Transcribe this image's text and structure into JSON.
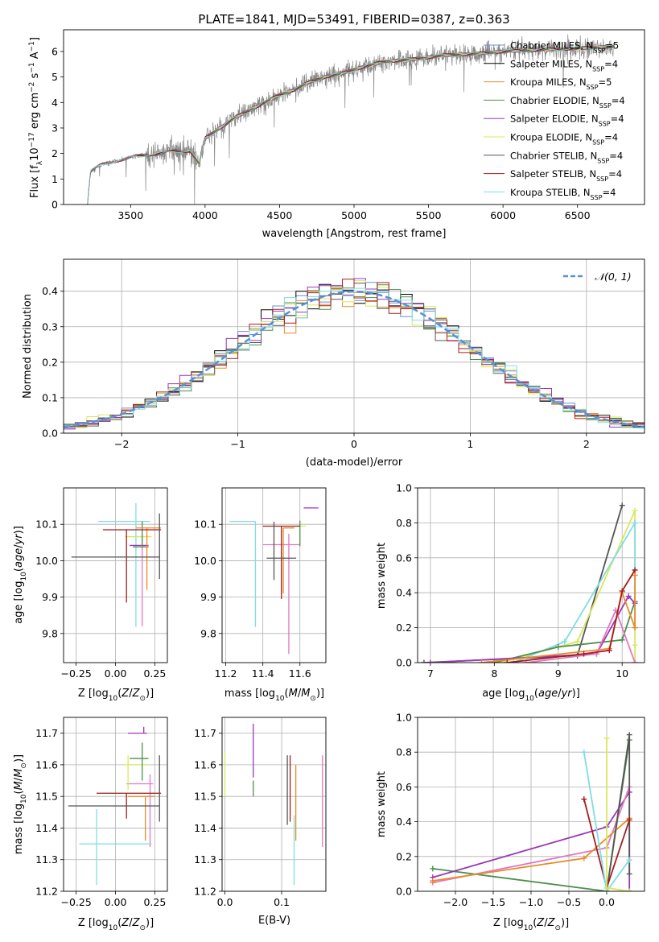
{
  "figure": {
    "title": "PLATE=1841, MJD=53491, FIBERID=0387, z=0.363"
  },
  "colors": {
    "models": [
      "#6b8fd6",
      "#000000",
      "#e88a2a",
      "#4e8f4e",
      "#9a37b8",
      "#d7e85a",
      "#555555",
      "#a51d1d",
      "#7fdde3"
    ],
    "pink": "#e377c2",
    "grid": "#b0b0b0",
    "gaussian": "#5b8fd6"
  },
  "chart_data": [
    {
      "id": "spectrum",
      "type": "line",
      "xlabel": "wavelength [Angstrom, rest frame]",
      "ylabel": "Flux [f_λ 10^-17 erg cm^-2 s^-1 A^-1]",
      "xlim": [
        3050,
        6950
      ],
      "ylim": [
        0,
        6.85
      ],
      "xticks": [
        3500,
        4000,
        4500,
        5000,
        5500,
        6000,
        6500
      ],
      "yticks": [
        0,
        1,
        2,
        3,
        4,
        5,
        6
      ],
      "grid": false,
      "legend_position": "upper-right",
      "legend": [
        {
          "label": "Chabrier MILES, N",
          "sub": "SSP",
          "suffix": "=5",
          "color_index": 0
        },
        {
          "label": "Salpeter MILES, N",
          "sub": "SSP",
          "suffix": "=4",
          "color_index": 1
        },
        {
          "label": "Kroupa MILES, N",
          "sub": "SSP",
          "suffix": "=5",
          "color_index": 2
        },
        {
          "label": "Chabrier ELODIE, N",
          "sub": "SSP",
          "suffix": "=4",
          "color_index": 3
        },
        {
          "label": "Salpeter ELODIE, N",
          "sub": "SSP",
          "suffix": "=4",
          "color_index": 4
        },
        {
          "label": "Kroupa ELODIE, N",
          "sub": "SSP",
          "suffix": "=4",
          "color_index": 5
        },
        {
          "label": "Chabrier STELIB, N",
          "sub": "SSP",
          "suffix": "=4",
          "color_index": 6
        },
        {
          "label": "Salpeter STELIB, N",
          "sub": "SSP",
          "suffix": "=4",
          "color_index": 7
        },
        {
          "label": "Kroupa STELIB, N",
          "sub": "SSP",
          "suffix": "=4",
          "color_index": 8
        }
      ],
      "continuum_knots": {
        "x": [
          3210,
          3230,
          3300,
          3400,
          3500,
          3600,
          3700,
          3800,
          3900,
          3960,
          4000,
          4100,
          4200,
          4300,
          4400,
          4500,
          4600,
          4700,
          4800,
          4900,
          5000,
          5200,
          5400,
          5600,
          5800,
          6000,
          6200,
          6400,
          6600,
          6750
        ],
        "y": [
          0.0,
          1.3,
          1.55,
          1.7,
          1.85,
          1.95,
          2.0,
          2.1,
          2.1,
          1.6,
          2.6,
          3.0,
          3.4,
          3.7,
          4.0,
          4.3,
          4.5,
          4.8,
          5.0,
          5.1,
          5.3,
          5.6,
          5.7,
          5.85,
          5.9,
          6.0,
          6.05,
          6.1,
          6.15,
          6.2
        ]
      },
      "model_start_wavelength": [
        3540,
        3540,
        3540,
        3900,
        3900,
        3900,
        3210,
        3210,
        3210
      ]
    },
    {
      "id": "residuals",
      "type": "histogram",
      "xlabel": "(data-model)/error",
      "ylabel": "Normed distribution",
      "xlim": [
        -2.5,
        2.5
      ],
      "ylim": [
        0,
        0.49
      ],
      "xticks": [
        -2,
        -1,
        0,
        1,
        2
      ],
      "yticks": [
        0.0,
        0.1,
        0.2,
        0.3,
        0.4
      ],
      "grid": true,
      "legend_position": "upper-right",
      "legend": [
        {
          "label": "𝒩(0, 1)",
          "style": "dashed"
        }
      ],
      "bin_width": 0.1,
      "bin_start": -2.5
    },
    {
      "id": "age-vs-Z",
      "type": "scatter",
      "xlabel": "Z [log10(Z/Z⊙)]",
      "ylabel": "age  [log10(age/yr)]",
      "xlim": [
        -0.33,
        0.33
      ],
      "ylim": [
        9.72,
        10.2
      ],
      "xticks": [
        -0.25,
        0.0,
        0.25
      ],
      "xticklabels": [
        "−0.25",
        "0.00",
        "0.25"
      ],
      "yticks": [
        9.8,
        9.9,
        10.0,
        10.1
      ],
      "grid": true,
      "errorbars": [
        {
          "x": 0.17,
          "y": 10.04,
          "xerr": [
            0.0,
            0.0
          ],
          "yerr": [
            0.22,
            0.03
          ],
          "color": "pink"
        },
        {
          "x": 0.13,
          "y": 10.108,
          "xerr": [
            0.24,
            0.09
          ],
          "yerr": [
            0.29,
            0.05
          ],
          "color": 8
        },
        {
          "x": 0.15,
          "y": 10.066,
          "xerr": [
            0.09,
            0.08
          ],
          "yerr": [
            0.0,
            0.0
          ],
          "color": 5
        },
        {
          "x": 0.16,
          "y": 10.042,
          "xerr": [
            0.07,
            0.05
          ],
          "yerr": [
            0.0,
            0.0
          ],
          "color": 4
        },
        {
          "x": 0.17,
          "y": 10.038,
          "xerr": [
            0.06,
            0.04
          ],
          "yerr": [
            0.0,
            0.07
          ],
          "color": 3
        },
        {
          "x": 0.2,
          "y": 10.09,
          "xerr": [
            0.07,
            0.09
          ],
          "yerr": [
            0.17,
            0.0
          ],
          "color": 2
        },
        {
          "x": 0.07,
          "y": 10.085,
          "xerr": [
            0.15,
            0.22
          ],
          "yerr": [
            0.2,
            0.0
          ],
          "color": 7
        },
        {
          "x": 0.28,
          "y": 10.01,
          "xerr": [
            0.56,
            0.0
          ],
          "yerr": [
            0.06,
            0.12
          ],
          "color": 6
        },
        {
          "x": 0.14,
          "y": 10.032,
          "xerr": [
            0.0,
            0.0
          ],
          "yerr": [
            0.0,
            0.0
          ],
          "color": 1
        }
      ]
    },
    {
      "id": "age-vs-mass",
      "type": "scatter",
      "xlabel": "mass [log10(M/M⊙)]",
      "ylabel": "",
      "xlim": [
        11.18,
        11.74
      ],
      "ylim": [
        9.72,
        10.2
      ],
      "xticks": [
        11.2,
        11.4,
        11.6
      ],
      "yticks": [
        9.8,
        9.9,
        10.0,
        10.1
      ],
      "grid": true,
      "errorbars": [
        {
          "x": 11.54,
          "y": 10.044,
          "xerr": [
            0.14,
            0.06
          ],
          "yerr": [
            0.3,
            0.03
          ],
          "color": "pink"
        },
        {
          "x": 11.36,
          "y": 10.108,
          "xerr": [
            0.14,
            0.0
          ],
          "yerr": [
            0.29,
            0.0
          ],
          "color": 8
        },
        {
          "x": 11.59,
          "y": 10.095,
          "xerr": [
            0.04,
            0.04
          ],
          "yerr": [
            0.0,
            0.0
          ],
          "color": 5
        },
        {
          "x": 11.7,
          "y": 10.145,
          "xerr": [
            0.08,
            0.0
          ],
          "yerr": [
            0.0,
            0.0
          ],
          "color": 4
        },
        {
          "x": 11.6,
          "y": 10.04,
          "xerr": [
            0.0,
            0.0
          ],
          "yerr": [
            0.0,
            0.07
          ],
          "color": 3
        },
        {
          "x": 11.51,
          "y": 10.09,
          "xerr": [
            0.0,
            0.06
          ],
          "yerr": [
            0.18,
            0.0
          ],
          "color": 2
        },
        {
          "x": 11.5,
          "y": 10.095,
          "xerr": [
            0.1,
            0.1
          ],
          "yerr": [
            0.2,
            0.0
          ],
          "color": 7
        },
        {
          "x": 11.46,
          "y": 10.007,
          "xerr": [
            0.04,
            0.12
          ],
          "yerr": [
            0.06,
            0.1
          ],
          "color": 6
        },
        {
          "x": 11.62,
          "y": 10.068,
          "xerr": [
            0.0,
            0.0
          ],
          "yerr": [
            0.0,
            0.0
          ],
          "color": 1
        }
      ]
    },
    {
      "id": "massweight-vs-age",
      "type": "line",
      "xlabel": "age  [log10(age/yr)]",
      "ylabel": "mass weight",
      "xlim": [
        6.8,
        10.35
      ],
      "ylim": [
        0,
        1
      ],
      "xticks": [
        7,
        8,
        9,
        10
      ],
      "yticks": [
        0.0,
        0.2,
        0.4,
        0.6,
        0.8,
        1.0
      ],
      "grid": true,
      "series": [
        {
          "color": 6,
          "x": [
            6.9,
            9.3,
            10.0
          ],
          "y": [
            0.0,
            0.04,
            0.9
          ]
        },
        {
          "color": 5,
          "x": [
            8.1,
            9.3,
            10.2,
            10.2,
            10.2
          ],
          "y": [
            0.0,
            0.12,
            0.87,
            0.1,
            0.0
          ]
        },
        {
          "color": 8,
          "x": [
            8.3,
            9.1,
            10.2,
            10.2
          ],
          "y": [
            0.0,
            0.12,
            0.8,
            0.2
          ]
        },
        {
          "color": 3,
          "x": [
            8.0,
            9.0,
            10.0,
            10.2
          ],
          "y": [
            0.0,
            0.09,
            0.13,
            0.35
          ]
        },
        {
          "color": 4,
          "x": [
            7.0,
            9.6,
            10.1,
            10.2
          ],
          "y": [
            0.0,
            0.05,
            0.38,
            0.34
          ]
        },
        {
          "color": 2,
          "x": [
            7.8,
            9.8,
            10.0,
            10.2,
            10.2
          ],
          "y": [
            0.0,
            0.08,
            0.4,
            0.2,
            0.5
          ]
        },
        {
          "color": "pink",
          "x": [
            8.5,
            9.6,
            9.9,
            10.2
          ],
          "y": [
            0.0,
            0.05,
            0.3,
            0.0
          ]
        },
        {
          "color": 7,
          "x": [
            8.2,
            9.4,
            9.8,
            10.0,
            10.2
          ],
          "y": [
            0.0,
            0.05,
            0.07,
            0.41,
            0.53
          ]
        }
      ]
    },
    {
      "id": "mass-vs-Z",
      "type": "scatter",
      "xlabel": "Z [log10(Z/Z⊙)]",
      "ylabel": "mass [log10(M/M⊙)]",
      "xlim": [
        -0.33,
        0.33
      ],
      "ylim": [
        11.2,
        11.75
      ],
      "xticks": [
        -0.25,
        0.0,
        0.25
      ],
      "xticklabels": [
        "−0.25",
        "0.00",
        "0.25"
      ],
      "yticks": [
        11.2,
        11.3,
        11.4,
        11.5,
        11.6,
        11.7
      ],
      "grid": true,
      "errorbars": [
        {
          "x": 0.22,
          "y": 11.54,
          "xerr": [
            0.15,
            0.02
          ],
          "yerr": [
            0.2,
            0.03
          ],
          "color": "pink"
        },
        {
          "x": -0.12,
          "y": 11.35,
          "xerr": [
            0.11,
            0.35
          ],
          "yerr": [
            0.13,
            0.11
          ],
          "color": 8
        },
        {
          "x": 0.08,
          "y": 11.6,
          "xerr": [
            0.03,
            0.13
          ],
          "yerr": [
            0.08,
            0.03
          ],
          "color": 5
        },
        {
          "x": 0.18,
          "y": 11.7,
          "xerr": [
            0.1,
            0.02
          ],
          "yerr": [
            0.0,
            0.02
          ],
          "color": 4
        },
        {
          "x": 0.17,
          "y": 11.62,
          "xerr": [
            0.08,
            0.04
          ],
          "yerr": [
            0.07,
            0.05
          ],
          "color": 3
        },
        {
          "x": 0.19,
          "y": 11.5,
          "xerr": [
            0.11,
            0.06
          ],
          "yerr": [
            0.14,
            0.0
          ],
          "color": 2
        },
        {
          "x": 0.07,
          "y": 11.51,
          "xerr": [
            0.19,
            0.22
          ],
          "yerr": [
            0.08,
            0.0
          ],
          "color": 7
        },
        {
          "x": 0.28,
          "y": 11.47,
          "xerr": [
            0.58,
            0.0
          ],
          "yerr": [
            0.05,
            0.16
          ],
          "color": 6
        },
        {
          "x": 0.22,
          "y": 11.52,
          "xerr": [
            0.0,
            0.0
          ],
          "yerr": [
            0.0,
            0.0
          ],
          "color": 1
        }
      ]
    },
    {
      "id": "mass-vs-EBV",
      "type": "scatter",
      "xlabel": "E(B-V)",
      "ylabel": "",
      "xlim": [
        -0.005,
        0.178
      ],
      "ylim": [
        11.2,
        11.75
      ],
      "xticks": [
        0.0,
        0.1
      ],
      "xticklabels": [
        "0.0",
        "0.1"
      ],
      "yticks": [
        11.2,
        11.3,
        11.4,
        11.5,
        11.6,
        11.7
      ],
      "grid": true,
      "errorbars": [
        {
          "x": 0.0,
          "y": 11.57,
          "xerr": [
            0.0,
            0.0
          ],
          "yerr": [
            0.07,
            0.07
          ],
          "color": 5
        },
        {
          "x": 0.05,
          "y": 11.65,
          "xerr": [
            0.0,
            0.0
          ],
          "yerr": [
            0.09,
            0.08
          ],
          "color": 4
        },
        {
          "x": 0.05,
          "y": 11.55,
          "xerr": [
            0.0,
            0.0
          ],
          "yerr": [
            0.05,
            0.0
          ],
          "color": 3
        },
        {
          "x": 0.11,
          "y": 11.52,
          "xerr": [
            0.0,
            0.0
          ],
          "yerr": [
            0.11,
            0.11
          ],
          "color": 6
        },
        {
          "x": 0.115,
          "y": 11.5,
          "xerr": [
            0.0,
            0.0
          ],
          "yerr": [
            0.08,
            0.13
          ],
          "color": 7
        },
        {
          "x": 0.125,
          "y": 11.43,
          "xerr": [
            0.0,
            0.0
          ],
          "yerr": [
            0.07,
            0.17
          ],
          "color": 2
        },
        {
          "x": 0.122,
          "y": 11.32,
          "xerr": [
            0.0,
            0.0
          ],
          "yerr": [
            0.1,
            0.12
          ],
          "color": 8
        },
        {
          "x": 0.172,
          "y": 11.5,
          "xerr": [
            0.0,
            0.0
          ],
          "yerr": [
            0.16,
            0.13
          ],
          "color": "pink"
        }
      ]
    },
    {
      "id": "massweight-vs-Z",
      "type": "line",
      "xlabel": "Z [log10(Z/Z⊙)]",
      "ylabel": "mass weight",
      "xlim": [
        -2.5,
        0.5
      ],
      "ylim": [
        0,
        1
      ],
      "xticks": [
        -2.0,
        -1.5,
        -1.0,
        -0.5,
        0.0
      ],
      "xticklabels": [
        "−2.0",
        "−1.5",
        "−1.0",
        "−0.5",
        "0.0"
      ],
      "yticks": [
        0.0,
        0.2,
        0.4,
        0.6,
        0.8,
        1.0
      ],
      "grid": true,
      "series": [
        {
          "color": 3,
          "x": [
            -2.3,
            0.0,
            0.3
          ],
          "y": [
            0.13,
            0.0,
            0.87
          ]
        },
        {
          "color": 4,
          "x": [
            -2.3,
            0.0,
            0.3,
            0.3
          ],
          "y": [
            0.08,
            0.37,
            0.57,
            0.0
          ]
        },
        {
          "color": "pink",
          "x": [
            -2.3,
            0.0,
            0.3
          ],
          "y": [
            0.05,
            0.25,
            0.6
          ]
        },
        {
          "color": 2,
          "x": [
            -2.3,
            -0.3,
            0.3
          ],
          "y": [
            0.06,
            0.19,
            0.42
          ]
        },
        {
          "color": 6,
          "x": [
            0.0,
            0.3,
            0.3
          ],
          "y": [
            0.0,
            0.9,
            0.1
          ]
        },
        {
          "color": 7,
          "x": [
            -0.3,
            0.0,
            0.3
          ],
          "y": [
            0.53,
            0.02,
            0.41
          ]
        },
        {
          "color": 8,
          "x": [
            -0.3,
            0.0,
            0.3
          ],
          "y": [
            0.8,
            0.0,
            0.18
          ]
        },
        {
          "color": 5,
          "x": [
            0.0,
            0.0,
            0.3
          ],
          "y": [
            0.88,
            0.02,
            0.0
          ]
        }
      ]
    }
  ]
}
